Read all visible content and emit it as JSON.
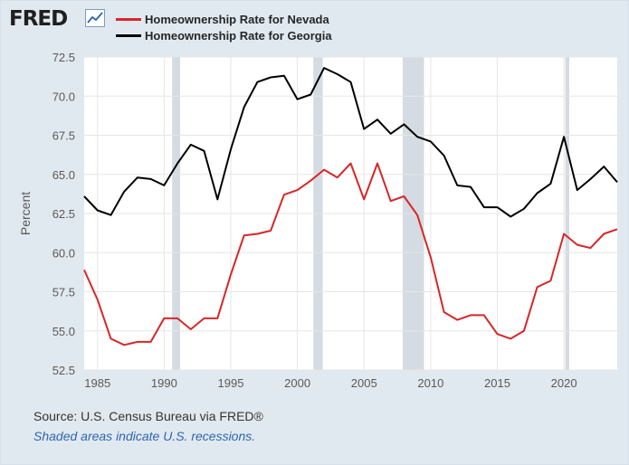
{
  "header": {
    "logo": "FRED",
    "logo_icon": "line-chart-icon"
  },
  "footer": {
    "source": "Source: U.S. Census Bureau via FRED®",
    "note": "Shaded areas indicate U.S. recessions."
  },
  "chart_data": {
    "type": "line",
    "ylabel": "Percent",
    "xlim": [
      1984,
      2024
    ],
    "ylim": [
      52.5,
      72.5
    ],
    "yticks": [
      "52.5",
      "55.0",
      "57.5",
      "60.0",
      "62.5",
      "65.0",
      "67.5",
      "70.0",
      "72.5"
    ],
    "xticks": [
      "1985",
      "1990",
      "1995",
      "2000",
      "2005",
      "2010",
      "2015",
      "2020"
    ],
    "grid": true,
    "legend_position": "top-left",
    "recessions": [
      [
        1990.6,
        1991.2
      ],
      [
        2001.2,
        2001.9
      ],
      [
        2007.9,
        2009.5
      ],
      [
        2020.1,
        2020.4
      ]
    ],
    "x": [
      1984,
      1985,
      1986,
      1987,
      1988,
      1989,
      1990,
      1991,
      1992,
      1993,
      1994,
      1995,
      1996,
      1997,
      1998,
      1999,
      2000,
      2001,
      2002,
      2003,
      2004,
      2005,
      2006,
      2007,
      2008,
      2009,
      2010,
      2011,
      2012,
      2013,
      2014,
      2015,
      2016,
      2017,
      2018,
      2019,
      2020,
      2021,
      2022,
      2023,
      2024
    ],
    "series": [
      {
        "name": "Homeownership Rate for Nevada",
        "color": "#d62728",
        "values": [
          58.9,
          57.0,
          54.5,
          54.1,
          54.3,
          54.3,
          55.8,
          55.8,
          55.1,
          55.8,
          55.8,
          58.6,
          61.1,
          61.2,
          61.4,
          63.7,
          64.0,
          64.6,
          65.3,
          64.8,
          65.7,
          63.4,
          65.7,
          63.3,
          63.6,
          62.4,
          59.7,
          56.2,
          55.7,
          56.0,
          56.0,
          54.8,
          54.5,
          55.0,
          57.8,
          58.2,
          61.2,
          60.5,
          60.3,
          61.2,
          61.5
        ]
      },
      {
        "name": "Homeownership Rate for Georgia",
        "color": "#000000",
        "values": [
          63.6,
          62.7,
          62.4,
          63.9,
          64.8,
          64.7,
          64.3,
          65.7,
          66.9,
          66.5,
          63.4,
          66.6,
          69.3,
          70.9,
          71.2,
          71.3,
          69.8,
          70.1,
          71.8,
          71.4,
          70.9,
          67.9,
          68.5,
          67.6,
          68.2,
          67.4,
          67.1,
          66.2,
          64.3,
          64.2,
          62.9,
          62.9,
          62.3,
          62.8,
          63.8,
          64.4,
          67.4,
          64.0,
          64.7,
          65.5,
          64.5
        ]
      }
    ]
  }
}
